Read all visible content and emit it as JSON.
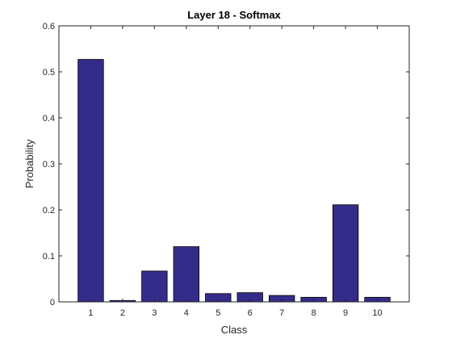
{
  "chart_data": {
    "type": "bar",
    "title": "Layer 18 - Softmax",
    "xlabel": "Class",
    "ylabel": "Probability",
    "categories": [
      "1",
      "2",
      "3",
      "4",
      "5",
      "6",
      "7",
      "8",
      "9",
      "10"
    ],
    "values": [
      0.527,
      0.003,
      0.067,
      0.12,
      0.018,
      0.02,
      0.014,
      0.01,
      0.211,
      0.01
    ],
    "xlim": [
      0,
      11
    ],
    "ylim": [
      0,
      0.6
    ],
    "yticks": [
      "0",
      "0.1",
      "0.2",
      "0.3",
      "0.4",
      "0.5",
      "0.6"
    ],
    "bar_color": "#352c89",
    "grid": false,
    "legend": "none"
  }
}
